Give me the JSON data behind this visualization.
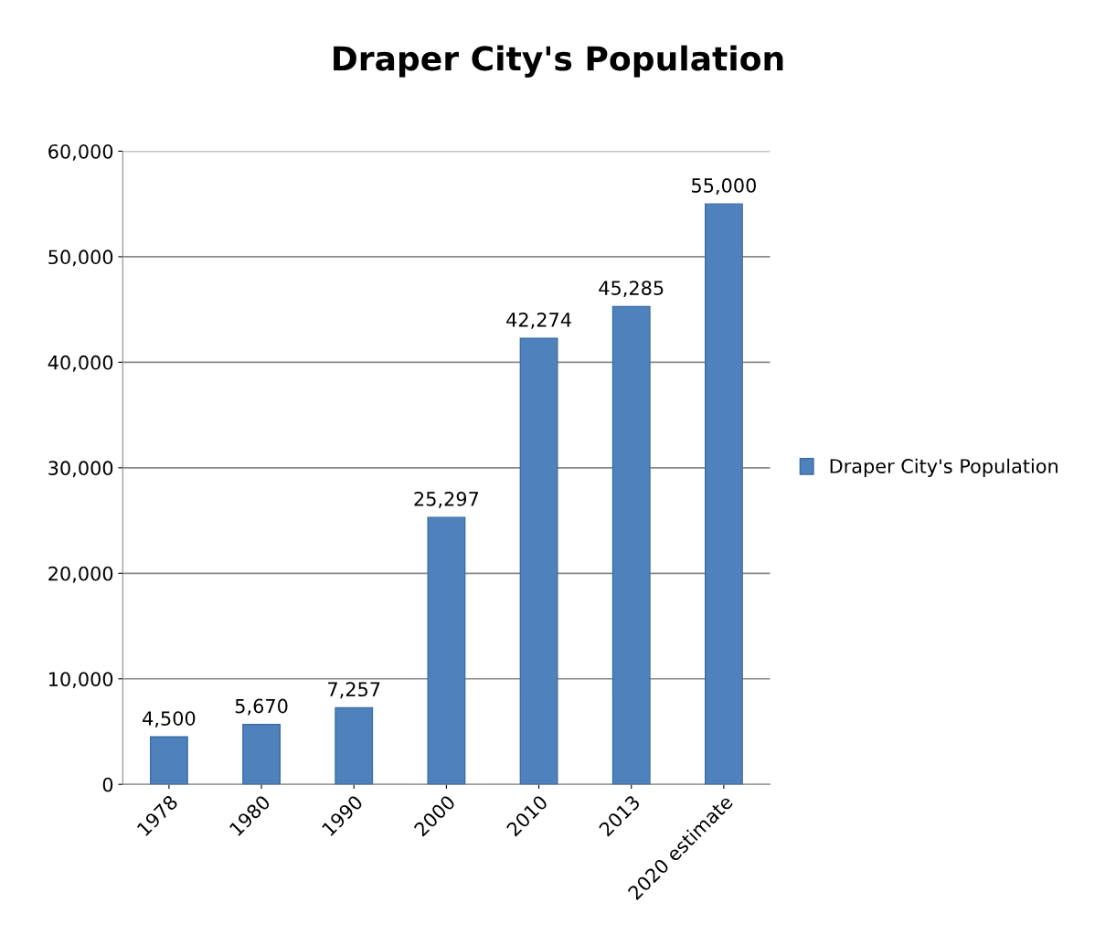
{
  "chart_data": {
    "type": "bar",
    "title": "Draper City's Population",
    "categories": [
      "1978",
      "1980",
      "1990",
      "2000",
      "2010",
      "2013",
      "2020 estimate"
    ],
    "series": [
      {
        "name": "Draper City's Population",
        "color": "#4f81bd",
        "values": [
          4500,
          5670,
          7257,
          25297,
          42274,
          45285,
          55000
        ],
        "value_labels": [
          "4,500",
          "5,670",
          "7,257",
          "25,297",
          "42,274",
          "45,285",
          "55,000"
        ]
      }
    ],
    "ylim": [
      0,
      60000
    ],
    "yticks": [
      0,
      {
        "value": 10000,
        "label": "10,000"
      },
      {
        "value": 20000,
        "label": "20,000"
      },
      {
        "value": 30000,
        "label": "30,000"
      },
      {
        "value": 40000,
        "label": "40,000"
      },
      {
        "value": 50000,
        "label": "50,000"
      },
      {
        "value": 60000,
        "label": "60,000"
      }
    ],
    "grid": "y",
    "legend": "right"
  }
}
